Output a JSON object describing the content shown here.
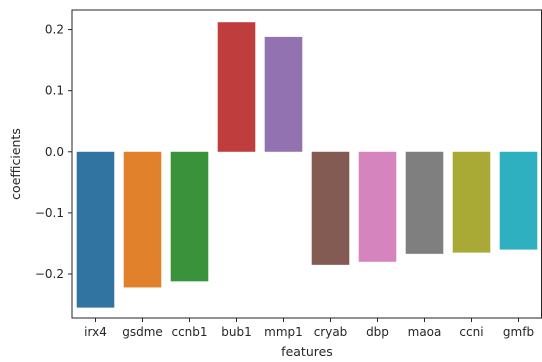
{
  "chart_data": {
    "type": "bar",
    "xlabel": "features",
    "ylabel": "coefficients",
    "categories": [
      "irx4",
      "gsdme",
      "ccnb1",
      "bub1",
      "mmp1",
      "cryab",
      "dbp",
      "maoa",
      "ccni",
      "gmfb"
    ],
    "values": [
      -0.255,
      -0.222,
      -0.212,
      0.212,
      0.188,
      -0.185,
      -0.18,
      -0.167,
      -0.165,
      -0.16
    ],
    "colors": [
      "#3274a1",
      "#e1812c",
      "#3a923a",
      "#c03d3e",
      "#9372b2",
      "#845b53",
      "#d684bd",
      "#7f7f7f",
      "#a9aa35",
      "#2eb0c0"
    ],
    "yticks": [
      0.2,
      0.1,
      0.0,
      -0.1,
      -0.2
    ],
    "ytick_labels": [
      "0.2",
      "0.1",
      "0.0",
      "−0.1",
      "−0.2"
    ],
    "ylim": [
      -0.272,
      0.232
    ],
    "grid": false,
    "legend": "none"
  }
}
